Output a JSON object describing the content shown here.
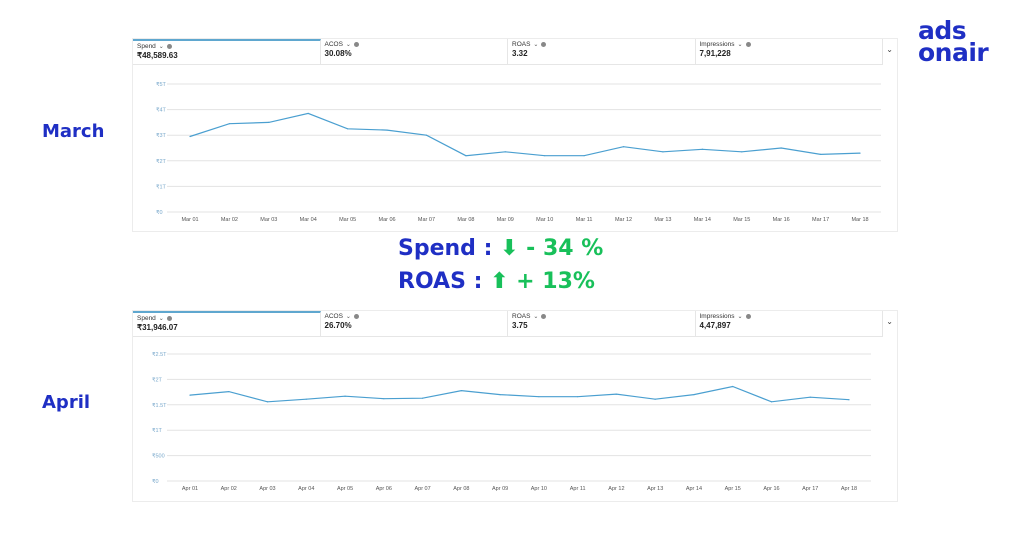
{
  "logo": {
    "line1": "ads",
    "line2": "onair"
  },
  "march": {
    "label": "March",
    "metrics": [
      {
        "name": "Spend",
        "value": "₹48,589.63"
      },
      {
        "name": "ACOS",
        "value": "30.08%"
      },
      {
        "name": "ROAS",
        "value": "3.32"
      },
      {
        "name": "Impressions",
        "value": "7,91,228"
      }
    ]
  },
  "april": {
    "label": "April",
    "metrics": [
      {
        "name": "Spend",
        "value": "₹31,946.07"
      },
      {
        "name": "ACOS",
        "value": "26.70%"
      },
      {
        "name": "ROAS",
        "value": "3.75"
      },
      {
        "name": "Impressions",
        "value": "4,47,897"
      }
    ]
  },
  "summary": {
    "spend_label": "Spend :",
    "spend_arrow": "⬇",
    "spend_value": "- 34 %",
    "roas_label": "ROAS  :",
    "roas_arrow": "⬆",
    "roas_value": "+ 13%"
  },
  "colors": {
    "brand": "#1f2fc4",
    "positive": "#18c05a",
    "line": "#4a9fd0",
    "active_tab": "#5fa7cf"
  },
  "chart_data": [
    {
      "type": "line",
      "title": "March",
      "x": [
        "Mar 01",
        "Mar 02",
        "Mar 03",
        "Mar 04",
        "Mar 05",
        "Mar 06",
        "Mar 07",
        "Mar 08",
        "Mar 09",
        "Mar 10",
        "Mar 11",
        "Mar 12",
        "Mar 13",
        "Mar 14",
        "Mar 15",
        "Mar 16",
        "Mar 17",
        "Mar 18"
      ],
      "series": [
        {
          "values": [
            2950,
            3450,
            3500,
            3850,
            3250,
            3200,
            3000,
            2200,
            2350,
            2200,
            2200,
            2550,
            2350,
            2450,
            2350,
            2500,
            2250,
            2300
          ]
        }
      ],
      "yticks": [
        {
          "v": 0,
          "label": "₹0"
        },
        {
          "v": 1000,
          "label": "₹1T"
        },
        {
          "v": 2000,
          "label": "₹2T"
        },
        {
          "v": 3000,
          "label": "₹3T"
        },
        {
          "v": 4000,
          "label": "₹4T"
        },
        {
          "v": 5000,
          "label": "₹5T"
        }
      ],
      "ylim": [
        0,
        5000
      ],
      "grid": true
    },
    {
      "type": "line",
      "title": "April",
      "x": [
        "Apr 01",
        "Apr 02",
        "Apr 03",
        "Apr 04",
        "Apr 05",
        "Apr 06",
        "Apr 07",
        "Apr 08",
        "Apr 09",
        "Apr 10",
        "Apr 11",
        "Apr 12",
        "Apr 13",
        "Apr 14",
        "Apr 15",
        "Apr 16",
        "Apr 17",
        "Apr 18"
      ],
      "series": [
        {
          "values": [
            1690,
            1760,
            1560,
            1610,
            1670,
            1620,
            1630,
            1780,
            1700,
            1660,
            1660,
            1710,
            1610,
            1700,
            1860,
            1560,
            1650,
            1600
          ]
        }
      ],
      "yticks": [
        {
          "v": 0,
          "label": "₹0"
        },
        {
          "v": 500,
          "label": "₹500"
        },
        {
          "v": 1000,
          "label": "₹1T"
        },
        {
          "v": 1500,
          "label": "₹1.5T"
        },
        {
          "v": 2000,
          "label": "₹2T"
        },
        {
          "v": 2500,
          "label": "₹2.5T"
        }
      ],
      "ylim": [
        0,
        2500
      ],
      "grid": true
    }
  ]
}
